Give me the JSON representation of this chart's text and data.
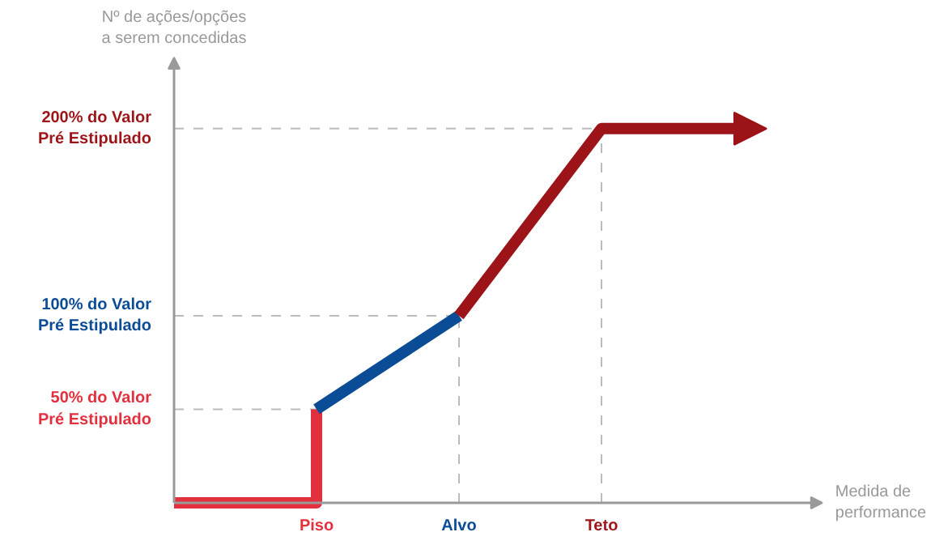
{
  "chart_data": {
    "type": "line",
    "ylabel": "Nº de ações/opções\na serem concedidas",
    "xlabel": "Medida de\nperformance",
    "categories": [
      null,
      "Piso",
      "Alvo",
      "Teto",
      null
    ],
    "ylim": [
      0,
      238
    ],
    "yticks": [
      {
        "value": 50,
        "label": "50% do Valor\nPré Estipulado"
      },
      {
        "value": 100,
        "label": "100% do Valor\nPré Estipulado"
      },
      {
        "value": 200,
        "label": "200% do Valor\nPré Estipulado"
      }
    ],
    "series": [
      {
        "type": "step",
        "color": "#e2303e",
        "values": [
          0,
          50,
          null,
          null,
          null
        ]
      },
      {
        "color": "#0a4c96",
        "values": [
          null,
          50,
          100,
          null,
          null
        ]
      },
      {
        "color": "#9c1418",
        "values": [
          null,
          null,
          100,
          200,
          200
        ]
      }
    ],
    "ref_lines": [
      {
        "axis": "y",
        "value": 50,
        "color": "#bbbbbb",
        "line_style": "dashed"
      },
      {
        "axis": "y",
        "value": 100,
        "color": "#bbbbbb",
        "line_style": "dashed"
      },
      {
        "axis": "y",
        "value": 200,
        "color": "#bbbbbb",
        "line_style": "dashed"
      },
      {
        "axis": "x",
        "value": "Alvo",
        "color": "#bbbbbb",
        "line_style": "dashed"
      },
      {
        "axis": "x",
        "value": "Teto",
        "color": "#bbbbbb",
        "line_style": "dashed"
      }
    ],
    "marker": "none",
    "line_style": "solid",
    "grid": false
  }
}
